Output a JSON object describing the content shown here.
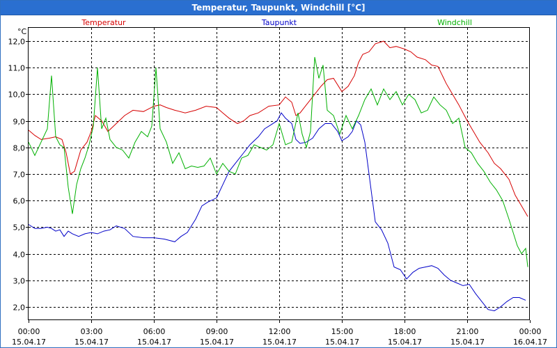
{
  "window": {
    "title": "Temperatur, Taupunkt, Windchill [°C]"
  },
  "colors": {
    "titlebar": "#2a6fd0",
    "Temperatur": "#d60000",
    "Taupunkt": "#0000c8",
    "Windchill": "#00b000"
  },
  "chart_data": {
    "type": "line",
    "title": "Temperatur, Taupunkt, Windchill [°C]",
    "unit_label": "°C",
    "ylim": [
      1.5,
      12.5
    ],
    "yticks": [
      "2,0",
      "3,0",
      "4,0",
      "5,0",
      "6,0",
      "7,0",
      "8,0",
      "9,0",
      "10,0",
      "11,0",
      "12,0"
    ],
    "ytick_values": [
      2,
      3,
      4,
      5,
      6,
      7,
      8,
      9,
      10,
      11,
      12
    ],
    "xlim": [
      0,
      24
    ],
    "xticks": [
      {
        "time": "00:00",
        "date": "15.04.17"
      },
      {
        "time": "03:00",
        "date": "15.04.17"
      },
      {
        "time": "06:00",
        "date": "15.04.17"
      },
      {
        "time": "09:00",
        "date": "15.04.17"
      },
      {
        "time": "12:00",
        "date": "15.04.17"
      },
      {
        "time": "15:00",
        "date": "15.04.17"
      },
      {
        "time": "18:00",
        "date": "15.04.17"
      },
      {
        "time": "21:00",
        "date": "15.04.17"
      },
      {
        "time": "00:00",
        "date": "16.04.17"
      }
    ],
    "grid": true,
    "legend": [
      "Temperatur",
      "Taupunkt",
      "Windchill"
    ],
    "series": [
      {
        "name": "Temperatur",
        "x": [
          0,
          0.3,
          0.6,
          1.0,
          1.3,
          1.6,
          1.8,
          2.0,
          2.2,
          2.5,
          2.8,
          3.0,
          3.2,
          3.5,
          3.8,
          4.2,
          4.6,
          5.0,
          5.5,
          6.0,
          6.3,
          6.6,
          7.0,
          7.5,
          8.0,
          8.5,
          9.0,
          9.3,
          9.6,
          10.0,
          10.3,
          10.6,
          11.0,
          11.5,
          12.0,
          12.3,
          12.6,
          12.8,
          13.0,
          13.3,
          13.6,
          14.0,
          14.3,
          14.6,
          15.0,
          15.3,
          15.6,
          15.8,
          16.0,
          16.3,
          16.6,
          17.0,
          17.3,
          17.6,
          18.0,
          18.3,
          18.6,
          19.0,
          19.3,
          19.6,
          20.0,
          20.3,
          20.6,
          21.0,
          21.3,
          21.6,
          22.0,
          22.3,
          22.6,
          23.0,
          23.3,
          23.6,
          23.9
        ],
        "values": [
          8.65,
          8.45,
          8.3,
          8.35,
          8.4,
          8.3,
          7.8,
          7.0,
          7.1,
          7.9,
          8.2,
          8.6,
          9.2,
          9.0,
          8.6,
          8.9,
          9.2,
          9.4,
          9.35,
          9.55,
          9.6,
          9.5,
          9.4,
          9.3,
          9.4,
          9.55,
          9.5,
          9.3,
          9.1,
          8.9,
          9.0,
          9.2,
          9.3,
          9.55,
          9.6,
          9.9,
          9.7,
          9.2,
          9.3,
          9.6,
          9.9,
          10.3,
          10.55,
          10.6,
          10.1,
          10.3,
          10.7,
          11.2,
          11.5,
          11.6,
          11.9,
          12.0,
          11.75,
          11.8,
          11.7,
          11.6,
          11.4,
          11.3,
          11.1,
          11.05,
          10.4,
          10.0,
          9.6,
          9.0,
          8.6,
          8.2,
          7.8,
          7.4,
          7.2,
          6.8,
          6.2,
          5.8,
          5.4
        ]
      },
      {
        "name": "Taupunkt",
        "x": [
          0,
          0.3,
          0.6,
          0.9,
          1.1,
          1.3,
          1.5,
          1.7,
          1.9,
          2.1,
          2.4,
          2.7,
          3.0,
          3.3,
          3.6,
          3.9,
          4.2,
          4.6,
          5.0,
          5.5,
          6.0,
          6.5,
          7.0,
          7.3,
          7.6,
          8.0,
          8.3,
          8.6,
          9.0,
          9.3,
          9.6,
          10.0,
          10.3,
          10.6,
          11.0,
          11.3,
          11.6,
          11.9,
          12.1,
          12.3,
          12.6,
          12.8,
          13.0,
          13.3,
          13.6,
          13.9,
          14.2,
          14.5,
          14.8,
          15.0,
          15.3,
          15.5,
          15.7,
          15.9,
          16.1,
          16.3,
          16.6,
          16.9,
          17.2,
          17.5,
          17.8,
          18.1,
          18.4,
          18.7,
          19.0,
          19.3,
          19.6,
          19.9,
          20.2,
          20.5,
          20.8,
          21.1,
          21.4,
          21.7,
          22.0,
          22.3,
          22.6,
          22.9,
          23.2,
          23.5,
          23.8
        ],
        "values": [
          5.1,
          4.95,
          4.95,
          5.0,
          4.95,
          4.85,
          4.9,
          4.65,
          4.85,
          4.75,
          4.65,
          4.75,
          4.8,
          4.75,
          4.85,
          4.9,
          5.05,
          4.95,
          4.65,
          4.6,
          4.6,
          4.55,
          4.45,
          4.65,
          4.8,
          5.3,
          5.8,
          5.95,
          6.1,
          6.6,
          7.1,
          7.5,
          7.8,
          8.1,
          8.4,
          8.7,
          8.85,
          9.0,
          9.3,
          9.1,
          8.9,
          8.3,
          8.15,
          8.2,
          8.35,
          8.7,
          8.9,
          8.9,
          8.6,
          8.25,
          8.4,
          8.6,
          9.0,
          8.85,
          8.2,
          7.0,
          5.2,
          4.9,
          4.4,
          3.5,
          3.4,
          3.05,
          3.3,
          3.45,
          3.5,
          3.55,
          3.45,
          3.2,
          3.0,
          2.9,
          2.8,
          2.85,
          2.5,
          2.2,
          1.9,
          1.85,
          2.0,
          2.2,
          2.35,
          2.35,
          2.25
        ]
      },
      {
        "name": "Windchill",
        "x": [
          0,
          0.3,
          0.6,
          0.9,
          1.1,
          1.3,
          1.5,
          1.7,
          1.9,
          2.1,
          2.3,
          2.5,
          2.7,
          2.9,
          3.1,
          3.3,
          3.5,
          3.7,
          3.9,
          4.2,
          4.5,
          4.8,
          5.1,
          5.4,
          5.7,
          5.9,
          6.1,
          6.3,
          6.6,
          6.9,
          7.2,
          7.5,
          7.8,
          8.1,
          8.4,
          8.7,
          9.0,
          9.3,
          9.6,
          9.9,
          10.2,
          10.5,
          10.8,
          11.1,
          11.4,
          11.7,
          12.0,
          12.3,
          12.6,
          12.9,
          13.1,
          13.3,
          13.5,
          13.7,
          13.9,
          14.1,
          14.3,
          14.6,
          14.9,
          15.2,
          15.5,
          15.8,
          16.1,
          16.4,
          16.7,
          17.0,
          17.3,
          17.6,
          17.9,
          18.2,
          18.5,
          18.8,
          19.1,
          19.4,
          19.7,
          20.0,
          20.3,
          20.6,
          20.9,
          21.2,
          21.5,
          21.8,
          22.1,
          22.4,
          22.7,
          23.0,
          23.2,
          23.4,
          23.6,
          23.8,
          23.9
        ],
        "values": [
          8.2,
          7.7,
          8.2,
          8.7,
          10.7,
          8.4,
          8.1,
          8.0,
          6.5,
          5.5,
          6.6,
          7.2,
          7.6,
          8.1,
          8.8,
          11.0,
          8.7,
          9.1,
          8.3,
          8.0,
          7.9,
          7.6,
          8.2,
          8.6,
          8.4,
          8.8,
          11.0,
          8.7,
          8.2,
          7.4,
          7.8,
          7.2,
          7.3,
          7.25,
          7.3,
          7.6,
          7.0,
          7.4,
          7.1,
          7.0,
          7.6,
          7.7,
          8.1,
          8.0,
          7.9,
          8.1,
          8.9,
          8.1,
          8.2,
          9.3,
          8.5,
          8.0,
          8.6,
          11.4,
          10.6,
          11.1,
          9.4,
          9.2,
          8.5,
          9.2,
          8.7,
          9.2,
          9.8,
          10.2,
          9.6,
          10.2,
          9.8,
          10.1,
          9.6,
          10.0,
          9.8,
          9.3,
          9.4,
          9.9,
          9.6,
          9.4,
          8.9,
          9.1,
          8.0,
          7.8,
          7.4,
          7.1,
          6.7,
          6.4,
          6.0,
          5.3,
          4.8,
          4.3,
          4.0,
          4.2,
          3.5
        ]
      }
    ]
  }
}
